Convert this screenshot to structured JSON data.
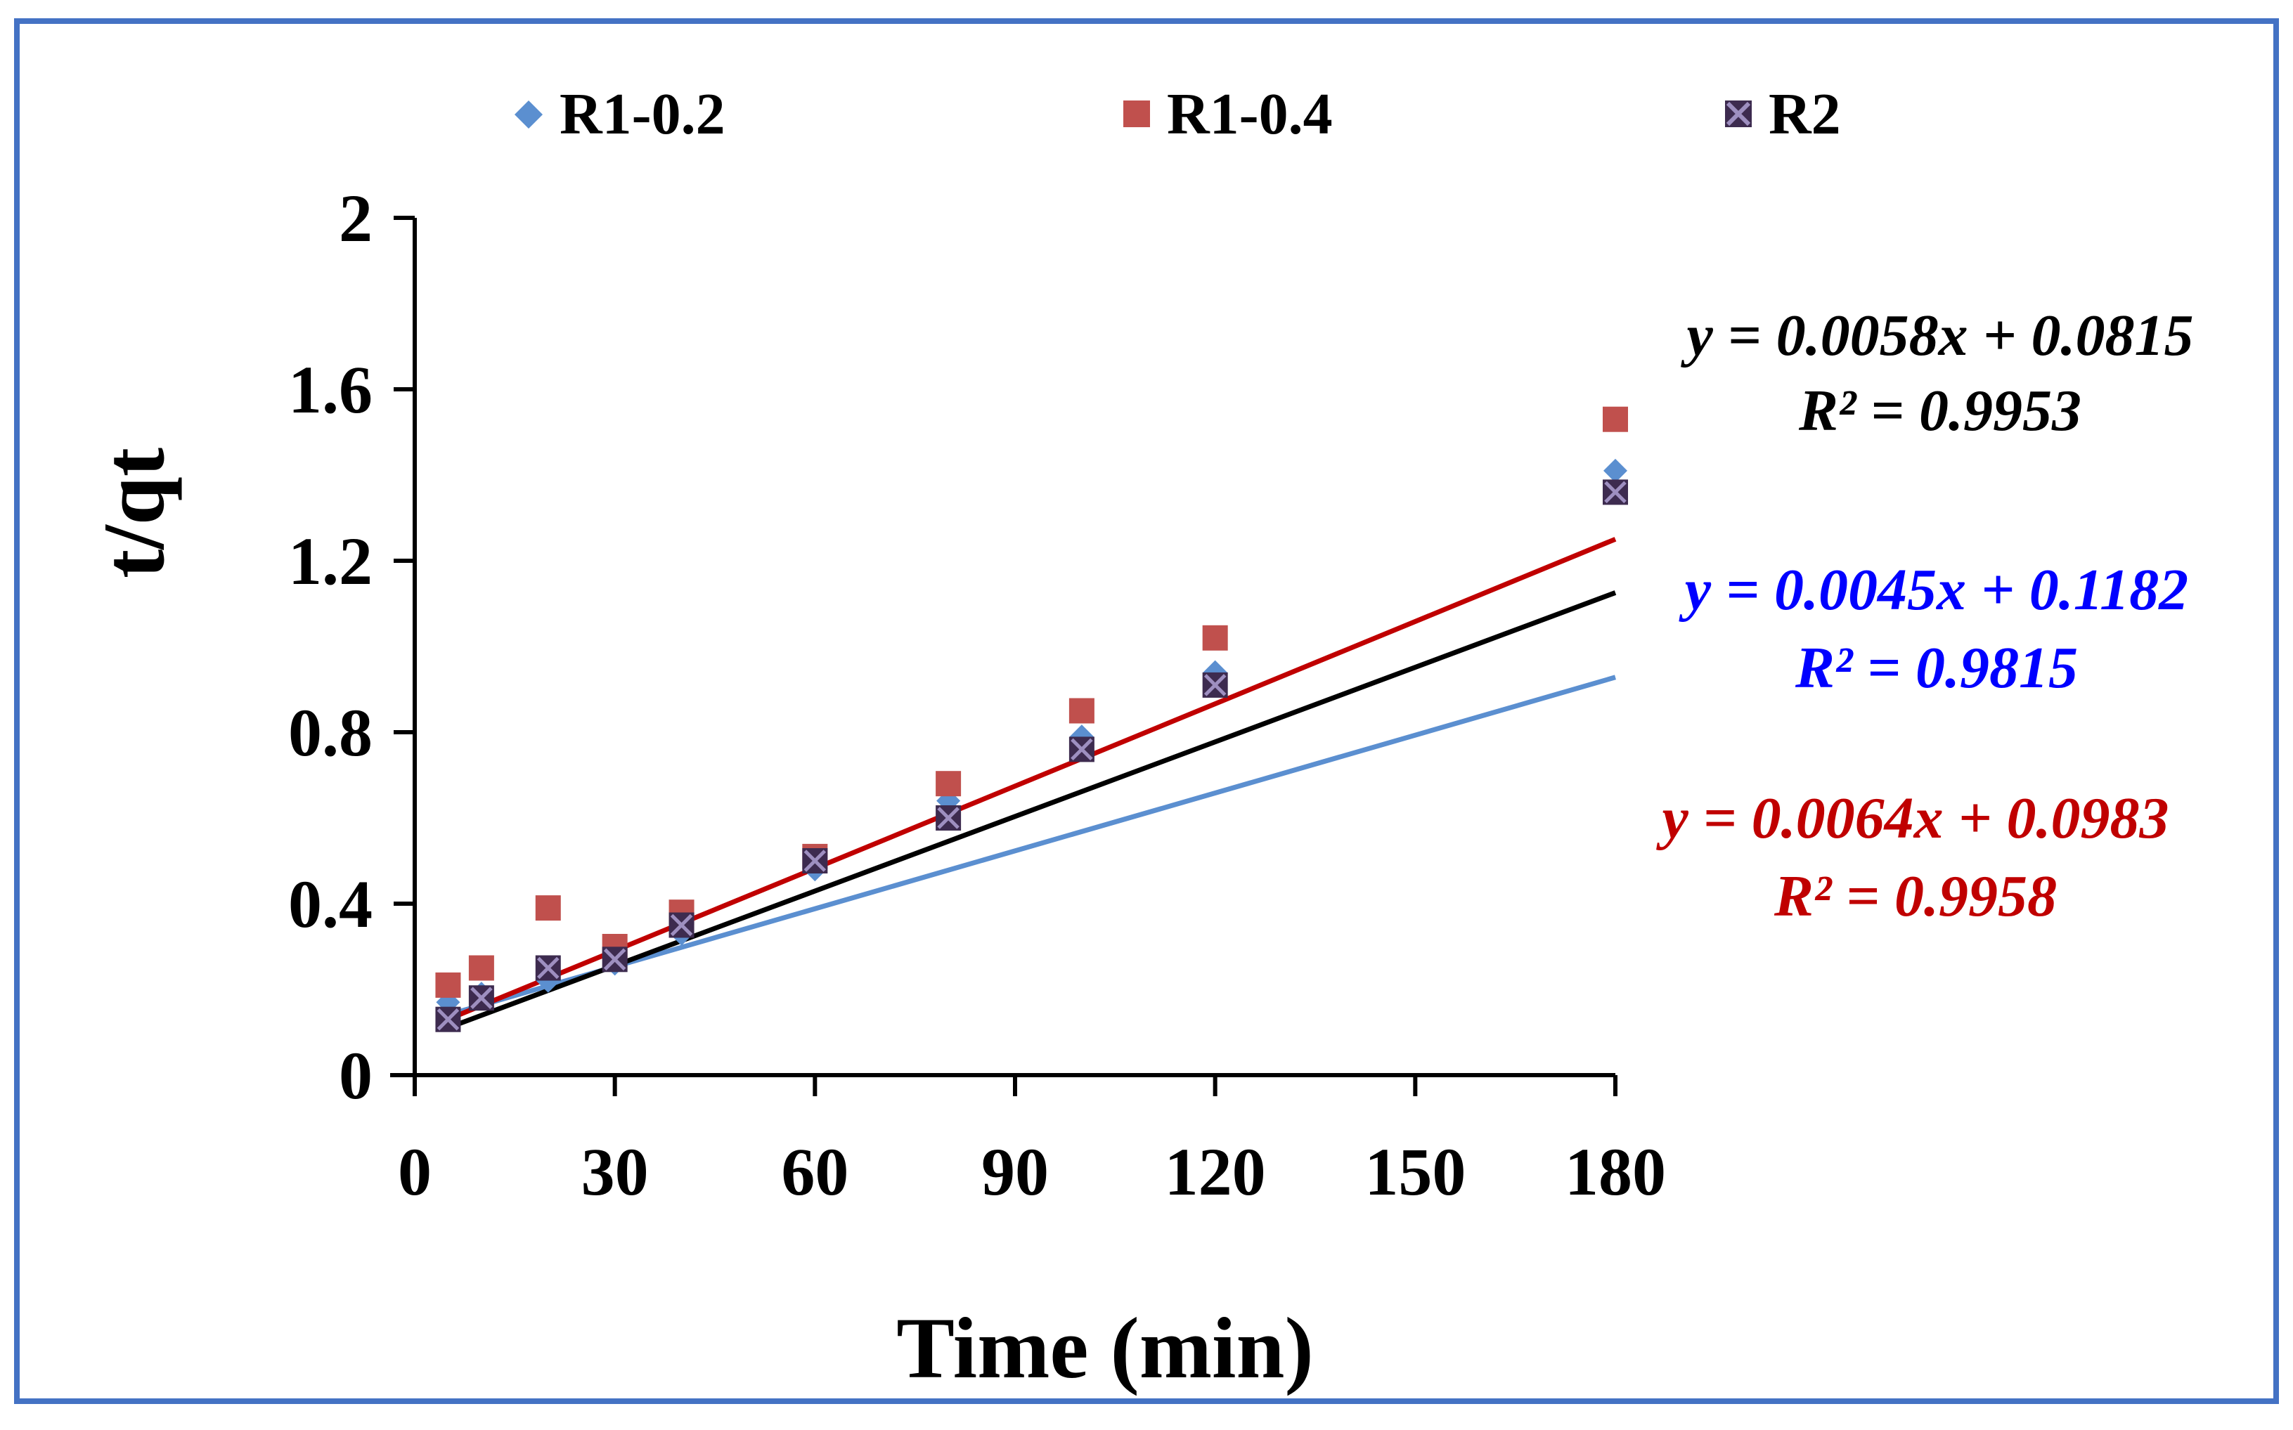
{
  "colors": {
    "frame": "#4472C4",
    "axis": "#000000",
    "R1-0.2": "#5B8FD0",
    "R1-0.4": "#C0504D",
    "R2": "#000000",
    "R2_marker_fill": "#3D2B4F",
    "R2_marker_cross": "#9E8FC0",
    "R1-0.2_line": "#5B8FD0",
    "R1-0.4_line": "#C00000",
    "R2_line": "#000000",
    "eq_black": "#000000",
    "eq_blue": "#0000FF",
    "eq_red": "#C00000"
  },
  "chart_data": {
    "type": "scatter",
    "title": "",
    "xlabel": "Time (min)",
    "ylabel": "t/qt",
    "xlim": [
      0,
      180
    ],
    "ylim": [
      0,
      2
    ],
    "xticks": [
      0,
      30,
      60,
      90,
      120,
      150,
      180
    ],
    "xtick_labels": [
      "0",
      "30",
      "60",
      "90",
      "120",
      "150",
      "180"
    ],
    "yticks": [
      0,
      0.4,
      0.8,
      1.2,
      1.6,
      2
    ],
    "ytick_labels": [
      "0",
      "0.4",
      "0.8",
      "1.2",
      "1.6",
      "2"
    ],
    "legend_position": "top",
    "grid": false,
    "series": [
      {
        "name": "R1-0.2",
        "marker": "diamond",
        "x": [
          5,
          10,
          20,
          30,
          40,
          60,
          80,
          100,
          120,
          180
        ],
        "y": [
          0.17,
          0.19,
          0.22,
          0.26,
          0.33,
          0.48,
          0.64,
          0.79,
          0.94,
          1.41
        ],
        "fit": {
          "slope": 0.0045,
          "intercept": 0.1182
        }
      },
      {
        "name": "R1-0.4",
        "marker": "square",
        "x": [
          5,
          10,
          20,
          30,
          40,
          60,
          80,
          100,
          120,
          180
        ],
        "y": [
          0.21,
          0.25,
          0.39,
          0.3,
          0.38,
          0.51,
          0.68,
          0.85,
          1.02,
          1.53
        ],
        "fit": {
          "slope": 0.0064,
          "intercept": 0.0983
        }
      },
      {
        "name": "R2",
        "marker": "x-square",
        "x": [
          5,
          10,
          20,
          30,
          40,
          60,
          80,
          100,
          120,
          180
        ],
        "y": [
          0.13,
          0.18,
          0.25,
          0.27,
          0.35,
          0.5,
          0.6,
          0.76,
          0.91,
          1.36
        ],
        "fit": {
          "slope": 0.0058,
          "intercept": 0.0815
        }
      }
    ],
    "annotations": [
      {
        "equation": "y = 0.0058x + 0.0815",
        "r2": "R² = 0.9953",
        "color_key": "eq_black"
      },
      {
        "equation": "y = 0.0045x + 0.1182",
        "r2": "R² = 0.9815",
        "color_key": "eq_blue"
      },
      {
        "equation": "y = 0.0064x + 0.0983",
        "r2": "R² = 0.9958",
        "color_key": "eq_red"
      }
    ]
  }
}
